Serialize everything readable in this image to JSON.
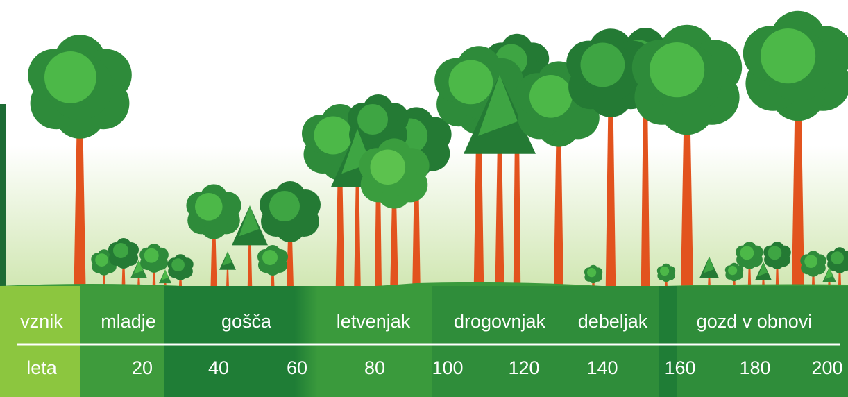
{
  "stage_row": {
    "label": "vznik",
    "stages": [
      "mladje",
      "gošča",
      "letvenjak",
      "drogovnjak",
      "debeljak",
      "gozd v obnovi"
    ]
  },
  "years_row": {
    "label": "leta",
    "years": [
      "20",
      "40",
      "60",
      "80",
      "100",
      "120",
      "140",
      "160",
      "180",
      "200"
    ]
  }
}
